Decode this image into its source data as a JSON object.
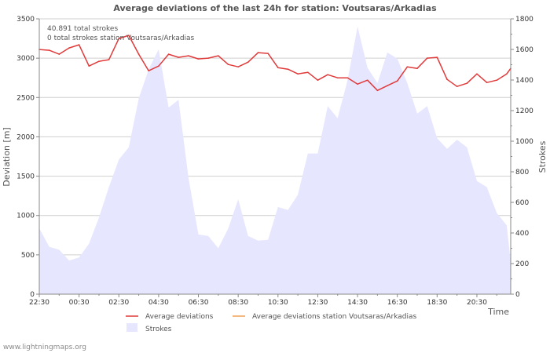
{
  "chart_data": {
    "type": "line",
    "title": "Average deviations of the last 24h for station: Voutsaras/Arkadias",
    "xlabel": "Time",
    "ylabel": "Deviation  [m]",
    "y2label": "Strokes",
    "annotations": [
      "40.891 total strokes",
      "0 total strokes station Voutsaras/Arkadias"
    ],
    "x_ticks": [
      "22:30",
      "00:30",
      "02:30",
      "04:30",
      "06:30",
      "08:30",
      "10:30",
      "12:30",
      "14:30",
      "16:30",
      "18:30",
      "20:30"
    ],
    "x_tick_hours": [
      0,
      2,
      4,
      6,
      8,
      10,
      12,
      14,
      16,
      18,
      20,
      22
    ],
    "x_range": [
      0,
      23.7
    ],
    "ylim": [
      0,
      3500
    ],
    "y_ticks": [
      0,
      500,
      1000,
      1500,
      2000,
      2500,
      3000,
      3500
    ],
    "y2lim": [
      0,
      1800
    ],
    "y2_ticks": [
      0,
      200,
      400,
      600,
      800,
      1000,
      1200,
      1400,
      1600,
      1800
    ],
    "grid": true,
    "legend": [
      {
        "label": "Average deviations",
        "color": "#e03a3a",
        "kind": "line"
      },
      {
        "label": "Average deviations station Voutsaras/Arkadias",
        "color": "#f0a050",
        "kind": "line"
      },
      {
        "label": "Strokes",
        "color": "#e6e6ff",
        "kind": "area"
      }
    ],
    "legend_position": "bottom",
    "series": [
      {
        "name": "Average deviations",
        "axis": "left",
        "color": "#e03a3a",
        "x": [
          0,
          0.5,
          1,
          1.5,
          2,
          2.5,
          3,
          3.5,
          4,
          4.5,
          5,
          5.5,
          6,
          6.5,
          7,
          7.5,
          8,
          8.5,
          9,
          9.5,
          10,
          10.5,
          11,
          11.5,
          12,
          12.5,
          13,
          13.5,
          14,
          14.5,
          15,
          15.5,
          16,
          16.5,
          17,
          17.5,
          18,
          18.5,
          19,
          19.5,
          20,
          20.5,
          21,
          21.5,
          22,
          22.5,
          23,
          23.5,
          23.7
        ],
        "values": [
          3110,
          3100,
          3050,
          3130,
          3170,
          2900,
          2960,
          2980,
          3250,
          3290,
          3050,
          2840,
          2900,
          3050,
          3010,
          3030,
          2990,
          3000,
          3030,
          2920,
          2890,
          2950,
          3070,
          3060,
          2880,
          2860,
          2800,
          2820,
          2720,
          2790,
          2750,
          2750,
          2670,
          2720,
          2590,
          2650,
          2710,
          2890,
          2870,
          3000,
          3010,
          2730,
          2640,
          2680,
          2800,
          2690,
          2720,
          2800,
          2870
        ]
      },
      {
        "name": "Strokes",
        "axis": "right",
        "color": "#e6e6ff",
        "x": [
          0,
          0.5,
          1,
          1.5,
          2,
          2.5,
          3,
          3.5,
          4,
          4.5,
          5,
          5.5,
          6,
          6.5,
          7,
          7.5,
          8,
          8.5,
          9,
          9.5,
          10,
          10.5,
          11,
          11.5,
          12,
          12.5,
          13,
          13.5,
          14,
          14.5,
          15,
          15.5,
          16,
          16.5,
          17,
          17.5,
          18,
          18.5,
          19,
          19.5,
          20,
          20.5,
          21,
          21.5,
          22,
          22.5,
          23,
          23.5,
          23.7
        ],
        "values": [
          430,
          310,
          290,
          220,
          240,
          330,
          500,
          700,
          880,
          960,
          1280,
          1470,
          1600,
          1220,
          1270,
          760,
          390,
          380,
          300,
          430,
          620,
          380,
          350,
          355,
          570,
          550,
          650,
          920,
          920,
          1230,
          1150,
          1400,
          1750,
          1480,
          1380,
          1580,
          1540,
          1380,
          1180,
          1230,
          1020,
          950,
          1010,
          960,
          740,
          700,
          530,
          450,
          210
        ]
      }
    ]
  },
  "footer": "www.lightningmaps.org"
}
